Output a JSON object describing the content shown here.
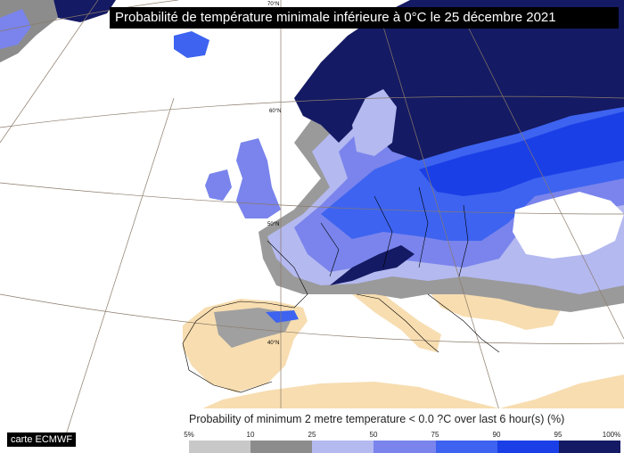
{
  "title": "Probabilité de température minimale inférieure à 0°C le 25 décembre 2021",
  "credit": "carte ECMWF",
  "lat_labels": [
    "70°N",
    "60°N",
    "50°N",
    "40°N"
  ],
  "legend": {
    "title": "Probability of minimum 2 metre temperature < 0.0 ?C over last 6 hour(s) (%)",
    "ticks": [
      "5%",
      "10",
      "25",
      "50",
      "75",
      "90",
      "95",
      "100%"
    ],
    "colors": [
      "#c8c8c8",
      "#8c8c8c",
      "#b4b9f0",
      "#7a84ec",
      "#3d63f0",
      "#1a3fe6",
      "#141a63"
    ]
  },
  "colors": {
    "land_low": "#f7ddb0",
    "sea": "#ffffff",
    "coast": "#000000",
    "grid": "#8a7a6a"
  }
}
